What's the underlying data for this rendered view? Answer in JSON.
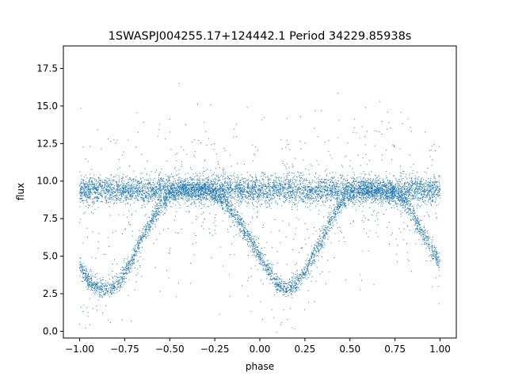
{
  "chart_data": {
    "type": "scatter",
    "title": "1SWASPJ004255.17+124442.1 Period 34229.85938s",
    "xlabel": "phase",
    "ylabel": "flux",
    "xlim": [
      -1.09,
      1.09
    ],
    "ylim": [
      -0.45,
      19.0
    ],
    "xticks": [
      -1.0,
      -0.75,
      -0.5,
      -0.25,
      0.0,
      0.25,
      0.5,
      0.75,
      1.0
    ],
    "xtick_labels": [
      "−1.00",
      "−0.75",
      "−0.50",
      "−0.25",
      "0.00",
      "0.25",
      "0.50",
      "0.75",
      "1.00"
    ],
    "yticks": [
      0.0,
      2.5,
      5.0,
      7.5,
      10.0,
      12.5,
      15.0,
      17.5
    ],
    "ytick_labels": [
      "0.0",
      "2.5",
      "5.0",
      "7.5",
      "10.0",
      "12.5",
      "15.0",
      "17.5"
    ],
    "grid": false,
    "point_color": "#1f77b4",
    "series": [
      {
        "description_free_points": true,
        "x": [
          -1.0,
          -0.95,
          -0.9,
          -0.85,
          -0.8,
          -0.75,
          -0.7,
          -0.65,
          -0.6,
          -0.55,
          -0.5,
          -0.45,
          -0.4,
          -0.3,
          -0.2,
          -0.1,
          0.0,
          0.05,
          0.1,
          0.15,
          0.2,
          0.25,
          0.3,
          0.35,
          0.4,
          0.45,
          0.5,
          0.55,
          0.6,
          0.7,
          0.8,
          0.85,
          0.9,
          0.95,
          1.0
        ],
        "y": [
          4.4,
          3.3,
          2.9,
          2.8,
          3.0,
          3.8,
          5.0,
          6.3,
          7.4,
          8.4,
          9.1,
          9.4,
          9.4,
          9.4,
          8.7,
          7.0,
          5.0,
          4.0,
          3.1,
          2.8,
          3.1,
          4.0,
          5.1,
          6.3,
          7.5,
          8.5,
          9.1,
          9.4,
          9.4,
          9.3,
          8.8,
          7.7,
          6.6,
          5.5,
          4.6
        ]
      },
      {
        "x": [
          -1.0,
          -0.75,
          -0.5,
          -0.25,
          0.0,
          0.25,
          0.5,
          0.75,
          1.0
        ],
        "y": [
          9.4,
          9.4,
          9.4,
          9.4,
          9.4,
          9.4,
          9.4,
          9.4,
          9.4
        ]
      }
    ]
  }
}
